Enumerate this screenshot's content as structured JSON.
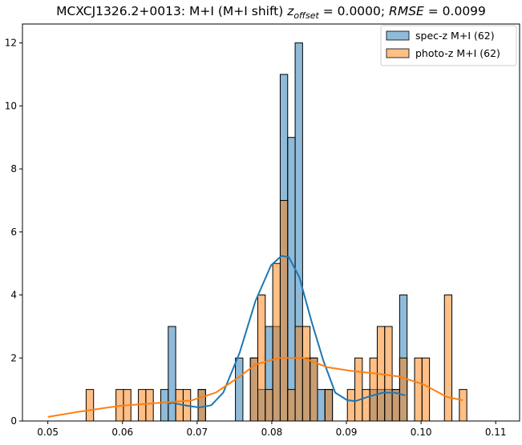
{
  "chart_data": {
    "type": "bar",
    "title_main": "MCXCJ1326.2+0013: M+I (M+I shift) ",
    "title_z": "z",
    "title_z_sub": "offset",
    "title_mid": " = 0.0000; ",
    "title_rmse": "RMSE",
    "title_end": " = 0.0099",
    "xlim": [
      0.0466,
      0.1132
    ],
    "ylim": [
      0,
      12.6
    ],
    "x_ticks": [
      "0.05",
      "0.06",
      "0.07",
      "0.08",
      "0.09",
      "0.10",
      "0.11"
    ],
    "x_tick_values": [
      0.05,
      0.06,
      0.07,
      0.08,
      0.09,
      0.1,
      0.11
    ],
    "y_ticks": [
      "0",
      "2",
      "4",
      "6",
      "8",
      "10",
      "12"
    ],
    "y_tick_values": [
      0,
      2,
      4,
      6,
      8,
      10,
      12
    ],
    "bin_start": 0.05513,
    "bin_width": 0.001,
    "legend_position": "top-right",
    "series": [
      {
        "name": "spec-z M+I (62)",
        "color": "#1f77b4",
        "counts": {
          "10": 1,
          "11": 3,
          "15": 1,
          "20": 2,
          "22": 2,
          "23": 1,
          "24": 3,
          "25": 3,
          "26": 11,
          "27": 9,
          "28": 12,
          "29": 2,
          "30": 2,
          "31": 1,
          "32": 1,
          "38": 1,
          "39": 1,
          "40": 1,
          "41": 1,
          "42": 4
        },
        "kde": [
          [
            0.066,
            0.53
          ],
          [
            0.0667,
            0.58
          ],
          [
            0.0682,
            0.5
          ],
          [
            0.0703,
            0.43
          ],
          [
            0.0719,
            0.5
          ],
          [
            0.0735,
            0.9
          ],
          [
            0.0757,
            2.17
          ],
          [
            0.0778,
            3.8
          ],
          [
            0.0799,
            4.94
          ],
          [
            0.0813,
            5.24
          ],
          [
            0.0823,
            5.2
          ],
          [
            0.0837,
            4.56
          ],
          [
            0.0853,
            3.18
          ],
          [
            0.0869,
            1.92
          ],
          [
            0.0885,
            0.9
          ],
          [
            0.0901,
            0.66
          ],
          [
            0.0912,
            0.63
          ],
          [
            0.0928,
            0.76
          ],
          [
            0.0949,
            0.9
          ],
          [
            0.0965,
            0.9
          ],
          [
            0.0979,
            0.81
          ]
        ]
      },
      {
        "name": "photo-z M+I (62)",
        "color": "#ff7f0e",
        "counts": {
          "0": 1,
          "4": 1,
          "5": 1,
          "7": 1,
          "8": 1,
          "12": 1,
          "13": 1,
          "15": 1,
          "22": 2,
          "23": 4,
          "24": 1,
          "25": 5,
          "26": 7,
          "27": 1,
          "28": 3,
          "29": 3,
          "30": 2,
          "32": 1,
          "35": 1,
          "36": 2,
          "37": 1,
          "38": 2,
          "39": 3,
          "40": 3,
          "41": 1,
          "42": 2,
          "44": 2,
          "45": 2,
          "48": 4,
          "50": 1
        },
        "kde": [
          [
            0.05,
            0.13
          ],
          [
            0.0543,
            0.3
          ],
          [
            0.0596,
            0.48
          ],
          [
            0.065,
            0.58
          ],
          [
            0.0692,
            0.65
          ],
          [
            0.0725,
            0.9
          ],
          [
            0.0757,
            1.41
          ],
          [
            0.0778,
            1.79
          ],
          [
            0.081,
            2.0
          ],
          [
            0.0842,
            2.0
          ],
          [
            0.0874,
            1.71
          ],
          [
            0.0906,
            1.59
          ],
          [
            0.0939,
            1.51
          ],
          [
            0.0971,
            1.41
          ],
          [
            0.1003,
            1.16
          ],
          [
            0.1035,
            0.76
          ],
          [
            0.1056,
            0.66
          ]
        ]
      }
    ]
  }
}
